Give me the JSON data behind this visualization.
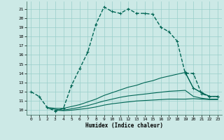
{
  "background_color": "#cce9e6",
  "grid_color": "#99ceca",
  "line_color": "#006655",
  "xlabel": "Humidex (Indice chaleur)",
  "xlim": [
    -0.5,
    23.5
  ],
  "ylim": [
    9.5,
    21.8
  ],
  "yticks": [
    10,
    11,
    12,
    13,
    14,
    15,
    16,
    17,
    18,
    19,
    20,
    21
  ],
  "xticks": [
    0,
    1,
    2,
    3,
    4,
    5,
    6,
    7,
    8,
    9,
    10,
    11,
    12,
    13,
    14,
    15,
    16,
    17,
    18,
    19,
    20,
    21,
    22,
    23
  ],
  "main_x": [
    0,
    1,
    2,
    3,
    4,
    5,
    6,
    7,
    8,
    9,
    10,
    11,
    12,
    13,
    14,
    15,
    16,
    17,
    18,
    19,
    20,
    21,
    22,
    23
  ],
  "main_y": [
    12.0,
    11.5,
    10.3,
    9.9,
    10.2,
    12.7,
    14.5,
    16.3,
    19.3,
    21.2,
    20.7,
    20.5,
    21.0,
    20.5,
    20.5,
    20.4,
    19.0,
    18.5,
    17.5,
    14.0,
    14.0,
    11.8,
    11.5,
    11.5
  ],
  "line2_x": [
    2,
    3,
    4,
    5,
    6,
    7,
    8,
    9,
    10,
    11,
    12,
    13,
    14,
    15,
    16,
    17,
    18,
    19,
    20,
    21,
    22,
    23
  ],
  "line2_y": [
    10.3,
    10.2,
    10.2,
    10.4,
    10.6,
    10.9,
    11.2,
    11.6,
    11.9,
    12.2,
    12.5,
    12.7,
    13.0,
    13.2,
    13.5,
    13.7,
    13.9,
    14.1,
    12.4,
    11.9,
    11.5,
    11.5
  ],
  "line3_x": [
    2,
    3,
    4,
    5,
    6,
    7,
    8,
    9,
    10,
    11,
    12,
    13,
    14,
    15,
    16,
    17,
    18,
    19,
    20,
    21,
    22,
    23
  ],
  "line3_y": [
    10.2,
    10.1,
    10.0,
    10.15,
    10.3,
    10.5,
    10.75,
    11.0,
    11.2,
    11.4,
    11.55,
    11.65,
    11.75,
    11.85,
    11.95,
    12.05,
    12.1,
    12.15,
    11.5,
    11.3,
    11.2,
    11.2
  ],
  "line4_x": [
    3,
    4,
    5,
    6,
    7,
    8,
    9,
    10,
    11,
    12,
    13,
    14,
    15,
    16,
    17,
    18,
    19,
    20,
    21,
    22,
    23
  ],
  "line4_y": [
    10.0,
    9.95,
    10.0,
    10.1,
    10.2,
    10.35,
    10.55,
    10.7,
    10.8,
    10.9,
    11.0,
    11.05,
    11.1,
    11.15,
    11.2,
    11.2,
    11.2,
    11.25,
    11.2,
    11.15,
    11.15
  ],
  "marker2_x": [
    19,
    20,
    21,
    22,
    23
  ],
  "marker2_y": [
    14.1,
    12.4,
    11.9,
    11.5,
    11.5
  ]
}
